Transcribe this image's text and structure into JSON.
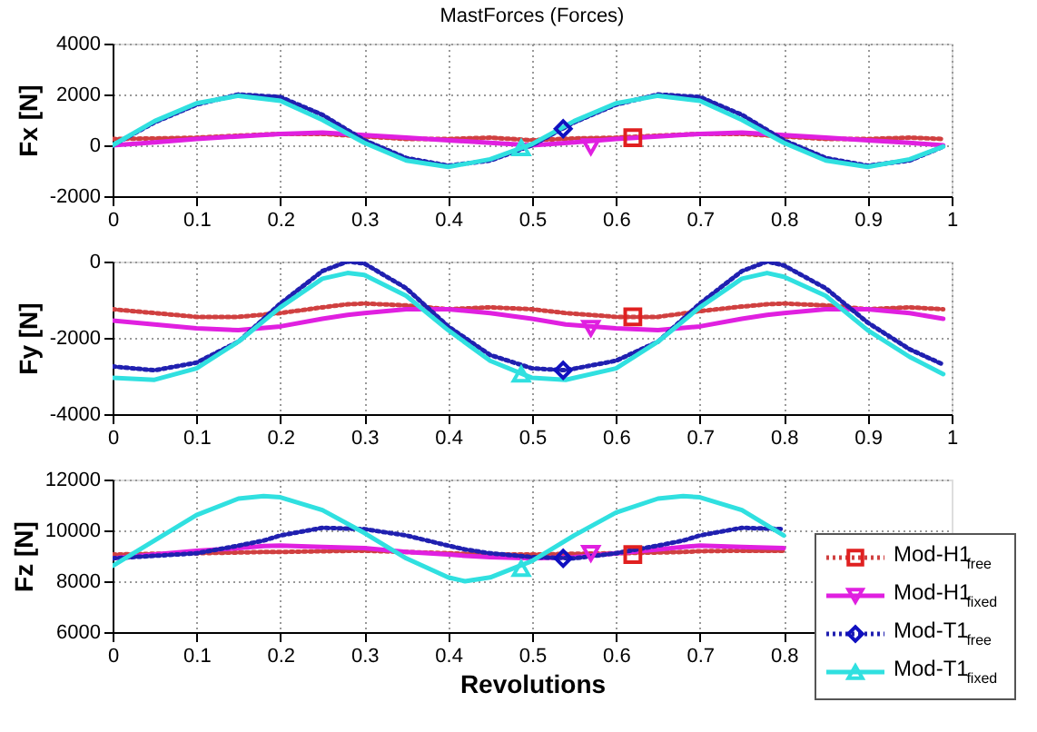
{
  "chart_data": [
    {
      "type": "line",
      "title": "MastForces  (Forces)",
      "ylabel": "Fx [N]",
      "xlim": [
        0,
        1
      ],
      "xticks": [
        0,
        0.1,
        0.2,
        0.3,
        0.4,
        0.5,
        0.6,
        0.7,
        0.8,
        0.9,
        1
      ],
      "ylim": [
        -2000,
        4000
      ],
      "yticks": [
        -2000,
        0,
        2000,
        4000
      ],
      "grid": true,
      "legend": false,
      "x": [
        0,
        0.05,
        0.1,
        0.15,
        0.2,
        0.25,
        0.3,
        0.35,
        0.4,
        0.45,
        0.5,
        0.55,
        0.6,
        0.65,
        0.7,
        0.75,
        0.8,
        0.85,
        0.9,
        0.95,
        0.99
      ],
      "series": [
        {
          "color": "#d04040",
          "line_style": "dotted",
          "values": [
            250,
            270,
            300,
            380,
            450,
            450,
            350,
            250,
            250,
            300,
            200,
            270,
            300,
            380,
            450,
            450,
            350,
            250,
            250,
            300,
            250
          ]
        },
        {
          "color": "#e020e0",
          "line_style": "solid",
          "values": [
            0,
            120,
            250,
            350,
            450,
            500,
            400,
            300,
            200,
            100,
            0,
            120,
            250,
            350,
            450,
            500,
            400,
            300,
            200,
            100,
            0
          ]
        },
        {
          "color": "#2020b0",
          "line_style": "dotted",
          "values": [
            0,
            900,
            1600,
            2000,
            1900,
            1200,
            200,
            -500,
            -800,
            -600,
            0,
            900,
            1600,
            2000,
            1900,
            1200,
            200,
            -500,
            -800,
            -600,
            -50
          ]
        },
        {
          "color": "#30e0e0",
          "line_style": "solid",
          "values": [
            0,
            950,
            1650,
            1950,
            1750,
            1000,
            100,
            -600,
            -850,
            -550,
            50,
            950,
            1650,
            1950,
            1750,
            1000,
            100,
            -600,
            -850,
            -550,
            -50
          ]
        },
        {
          "type": "scatter",
          "color": "#e02020",
          "marker": "square",
          "x": [
            0.62
          ],
          "values": [
            300
          ]
        },
        {
          "type": "scatter",
          "color": "#e020e0",
          "marker": "triangle_down",
          "x": [
            0.57
          ],
          "values": [
            -50
          ]
        },
        {
          "type": "scatter",
          "color": "#1010c0",
          "marker": "diamond",
          "x": [
            0.537
          ],
          "values": [
            650
          ]
        },
        {
          "type": "scatter",
          "color": "#30e0e0",
          "marker": "triangle",
          "x": [
            0.487
          ],
          "values": [
            -100
          ]
        }
      ]
    },
    {
      "type": "line",
      "ylabel": "Fy [N]",
      "xlim": [
        0,
        1
      ],
      "xticks": [
        0,
        0.1,
        0.2,
        0.3,
        0.4,
        0.5,
        0.6,
        0.7,
        0.8,
        0.9,
        1
      ],
      "ylim": [
        -4000,
        0
      ],
      "yticks": [
        -4000,
        -2000,
        0
      ],
      "grid": true,
      "legend": false,
      "x": [
        0,
        0.05,
        0.1,
        0.15,
        0.2,
        0.25,
        0.28,
        0.3,
        0.35,
        0.4,
        0.45,
        0.5,
        0.54,
        0.6,
        0.65,
        0.7,
        0.75,
        0.78,
        0.8,
        0.85,
        0.9,
        0.95,
        0.99
      ],
      "series": [
        {
          "color": "#d04040",
          "line_style": "dotted",
          "values": [
            -1250,
            -1350,
            -1450,
            -1450,
            -1350,
            -1200,
            -1120,
            -1100,
            -1150,
            -1250,
            -1200,
            -1250,
            -1350,
            -1450,
            -1450,
            -1300,
            -1180,
            -1120,
            -1100,
            -1150,
            -1250,
            -1200,
            -1250
          ]
        },
        {
          "color": "#e020e0",
          "line_style": "solid",
          "values": [
            -1550,
            -1650,
            -1750,
            -1800,
            -1700,
            -1500,
            -1400,
            -1350,
            -1250,
            -1250,
            -1350,
            -1500,
            -1650,
            -1750,
            -1800,
            -1700,
            -1500,
            -1400,
            -1350,
            -1250,
            -1250,
            -1350,
            -1500
          ]
        },
        {
          "color": "#2020b0",
          "line_style": "dotted",
          "values": [
            -2750,
            -2850,
            -2650,
            -2100,
            -1100,
            -250,
            0,
            -50,
            -700,
            -1700,
            -2450,
            -2800,
            -2850,
            -2600,
            -2100,
            -1100,
            -250,
            0,
            -100,
            -700,
            -1600,
            -2300,
            -2700
          ]
        },
        {
          "color": "#30e0e0",
          "line_style": "solid",
          "values": [
            -3050,
            -3100,
            -2800,
            -2100,
            -1200,
            -450,
            -300,
            -350,
            -900,
            -1800,
            -2600,
            -3050,
            -3100,
            -2800,
            -2100,
            -1200,
            -450,
            -300,
            -400,
            -900,
            -1800,
            -2500,
            -2950
          ]
        },
        {
          "type": "scatter",
          "color": "#e02020",
          "marker": "square",
          "x": [
            0.62
          ],
          "values": [
            -1450
          ]
        },
        {
          "type": "scatter",
          "color": "#e020e0",
          "marker": "triangle_down",
          "x": [
            0.57
          ],
          "values": [
            -1750
          ]
        },
        {
          "type": "scatter",
          "color": "#1010c0",
          "marker": "diamond",
          "x": [
            0.537
          ],
          "values": [
            -2850
          ]
        },
        {
          "type": "scatter",
          "color": "#30e0e0",
          "marker": "triangle",
          "x": [
            0.487
          ],
          "values": [
            -2950
          ]
        }
      ]
    },
    {
      "type": "line",
      "xlabel": "Revolutions",
      "ylabel": "Fz [N]",
      "xlim": [
        0,
        1
      ],
      "xticks": [
        0,
        0.1,
        0.2,
        0.3,
        0.4,
        0.5,
        0.6,
        0.7,
        0.8
      ],
      "ylim": [
        6000,
        12000
      ],
      "yticks": [
        6000,
        8000,
        10000,
        12000
      ],
      "grid": true,
      "legend": "bottom right",
      "x": [
        0,
        0.05,
        0.1,
        0.15,
        0.18,
        0.2,
        0.25,
        0.3,
        0.35,
        0.4,
        0.42,
        0.45,
        0.5,
        0.55,
        0.6,
        0.65,
        0.68,
        0.7,
        0.75,
        0.8
      ],
      "series": [
        {
          "name": "Mod-H1$_{free}$",
          "color": "#d04040",
          "line_style": "dotted",
          "values": [
            9050,
            9080,
            9100,
            9130,
            9150,
            9150,
            9180,
            9200,
            9150,
            9100,
            9080,
            9060,
            9050,
            9080,
            9100,
            9130,
            9150,
            9180,
            9200,
            9200
          ]
        },
        {
          "name": "Mod-H1$_{fixed}$",
          "color": "#e020e0",
          "line_style": "solid",
          "values": [
            8900,
            9050,
            9200,
            9300,
            9380,
            9400,
            9350,
            9300,
            9150,
            9050,
            9000,
            8950,
            8900,
            8950,
            9100,
            9250,
            9350,
            9400,
            9350,
            9300
          ]
        },
        {
          "name": "Mod-T1$_{free}$",
          "color": "#2020b0",
          "line_style": "dotted",
          "values": [
            8900,
            9000,
            9100,
            9400,
            9600,
            9800,
            10100,
            10050,
            9800,
            9400,
            9250,
            9100,
            8950,
            8900,
            9100,
            9400,
            9600,
            9800,
            10100,
            10050
          ]
        },
        {
          "name": "Mod-T1$_{fixed}$",
          "color": "#30e0e0",
          "line_style": "solid",
          "values": [
            8600,
            9600,
            10600,
            11250,
            11350,
            11300,
            10800,
            9900,
            8900,
            8150,
            8000,
            8150,
            8800,
            9800,
            10700,
            11250,
            11350,
            11300,
            10800,
            9800
          ]
        },
        {
          "type": "scatter",
          "color": "#e02020",
          "marker": "square",
          "x": [
            0.62
          ],
          "values": [
            9050
          ]
        },
        {
          "type": "scatter",
          "color": "#e020e0",
          "marker": "triangle_down",
          "x": [
            0.57
          ],
          "values": [
            9100
          ]
        },
        {
          "type": "scatter",
          "color": "#1010c0",
          "marker": "diamond",
          "x": [
            0.537
          ],
          "values": [
            8900
          ]
        },
        {
          "type": "scatter",
          "color": "#30e0e0",
          "marker": "triangle",
          "x": [
            0.487
          ],
          "values": [
            8500
          ]
        }
      ]
    }
  ]
}
